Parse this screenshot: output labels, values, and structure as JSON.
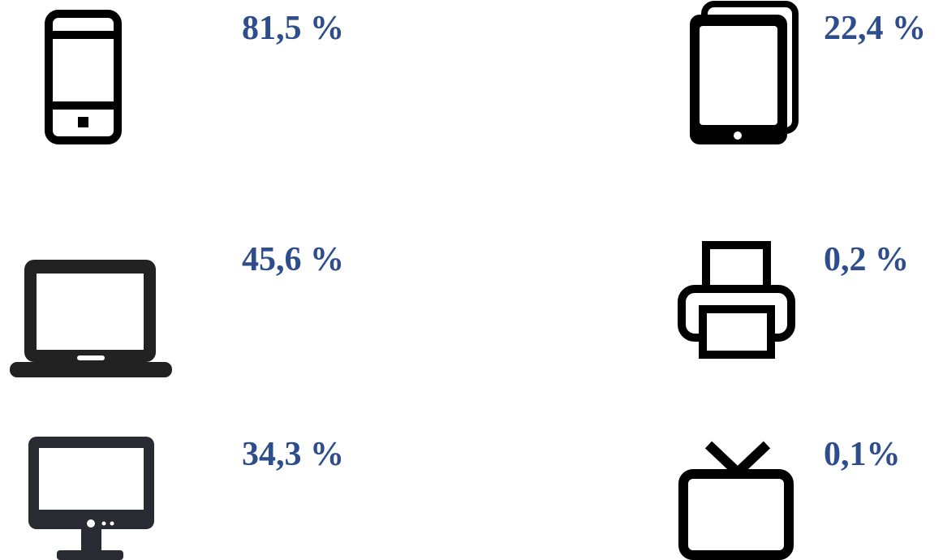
{
  "items": [
    {
      "label": "81,5 %"
    },
    {
      "label": "22,4 %"
    },
    {
      "label": "45,6 %"
    },
    {
      "label": "0,2 %"
    },
    {
      "label": "34,3 %"
    },
    {
      "label": "0,1%"
    }
  ]
}
